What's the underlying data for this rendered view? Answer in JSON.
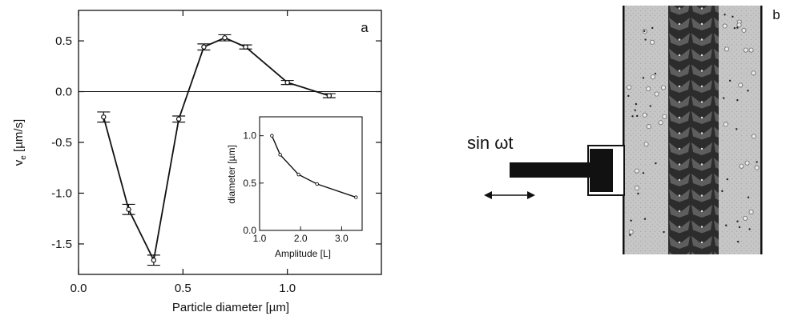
{
  "panel_a": {
    "label": "a",
    "chart_data": {
      "type": "line",
      "xlabel": "Particle diameter  [µm]",
      "ylabel_main": "v",
      "ylabel_sub": "e",
      "ylabel_unit": " [µm/s]",
      "xlim": [
        0.0,
        1.45
      ],
      "ylim": [
        -1.8,
        0.8
      ],
      "x_ticks": [
        0.0,
        0.5,
        1.0
      ],
      "x_tick_labels": [
        "0.0",
        "0.5",
        "1.0"
      ],
      "y_ticks": [
        0.5,
        0.0,
        -0.5,
        -1.0,
        -1.5
      ],
      "y_tick_labels": [
        "0.5",
        "0.0",
        "-0.5",
        "-1.0",
        "-1.5"
      ],
      "zero_line": true,
      "points": [
        {
          "x": 0.12,
          "y": -0.25,
          "err": 0.05
        },
        {
          "x": 0.24,
          "y": -1.16,
          "err": 0.05
        },
        {
          "x": 0.36,
          "y": -1.66,
          "err": 0.05
        },
        {
          "x": 0.48,
          "y": -0.27,
          "err": 0.03
        },
        {
          "x": 0.6,
          "y": 0.44,
          "err": 0.03
        },
        {
          "x": 0.7,
          "y": 0.53,
          "err": 0.03
        },
        {
          "x": 0.8,
          "y": 0.44,
          "err": 0.02
        },
        {
          "x": 1.0,
          "y": 0.09,
          "err": 0.02
        },
        {
          "x": 1.2,
          "y": -0.04,
          "err": 0.02
        }
      ]
    },
    "inset": {
      "chart_data": {
        "type": "line",
        "xlabel": "Amplitude  [L]",
        "ylabel": "diameter [µm]",
        "xlim": [
          1.0,
          3.5
        ],
        "ylim": [
          0.0,
          1.2
        ],
        "x_ticks": [
          1.0,
          2.0,
          3.0
        ],
        "x_tick_labels": [
          "1.0",
          "2.0",
          "3.0"
        ],
        "y_ticks": [
          0.0,
          0.5,
          1.0
        ],
        "y_tick_labels": [
          "0.0",
          "0.5",
          "1.0"
        ],
        "points": [
          {
            "x": 1.3,
            "y": 1.0
          },
          {
            "x": 1.5,
            "y": 0.8
          },
          {
            "x": 1.95,
            "y": 0.59
          },
          {
            "x": 2.4,
            "y": 0.49
          },
          {
            "x": 3.35,
            "y": 0.35
          }
        ]
      }
    }
  },
  "panel_b": {
    "label": "b",
    "drive_label": "sin ωt"
  }
}
